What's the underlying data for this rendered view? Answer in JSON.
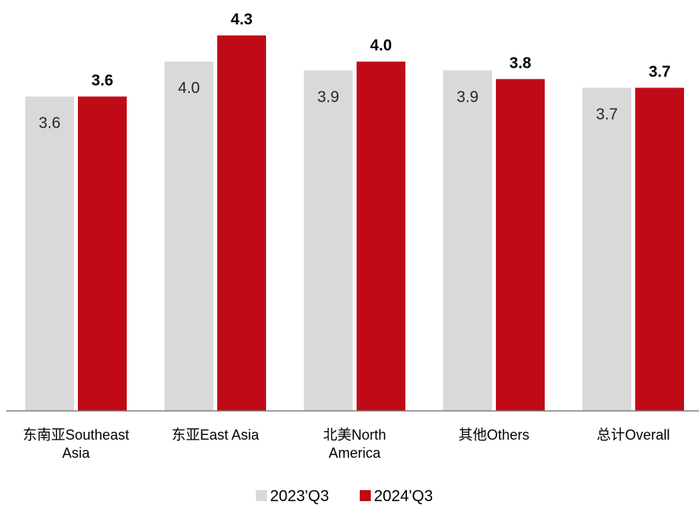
{
  "chart_data": {
    "type": "bar",
    "categories": [
      [
        "东南亚Southeast",
        "Asia"
      ],
      [
        "东亚East Asia"
      ],
      [
        "北美North",
        "America"
      ],
      [
        "其他Others"
      ],
      [
        "总计Overall"
      ]
    ],
    "series": [
      {
        "name": "2023'Q3",
        "values": [
          3.6,
          4.0,
          3.9,
          3.9,
          3.7
        ],
        "labels": [
          "3.6",
          "4.0",
          "3.9",
          "3.9",
          "3.7"
        ],
        "color": "#d9d9d9",
        "label_color": "#262626",
        "label_position": "inside",
        "label_bold": false
      },
      {
        "name": "2024'Q3",
        "values": [
          3.6,
          4.3,
          4.0,
          3.8,
          3.7
        ],
        "labels": [
          "3.6",
          "4.3",
          "4.0",
          "3.8",
          "3.7"
        ],
        "color": "#c00a17",
        "label_color": "#000000",
        "label_position": "above",
        "label_bold": true
      }
    ],
    "ylim": [
      0,
      4.3
    ],
    "grid": false,
    "legend": "bottom-center",
    "axis_color": "#7f7f7f"
  }
}
